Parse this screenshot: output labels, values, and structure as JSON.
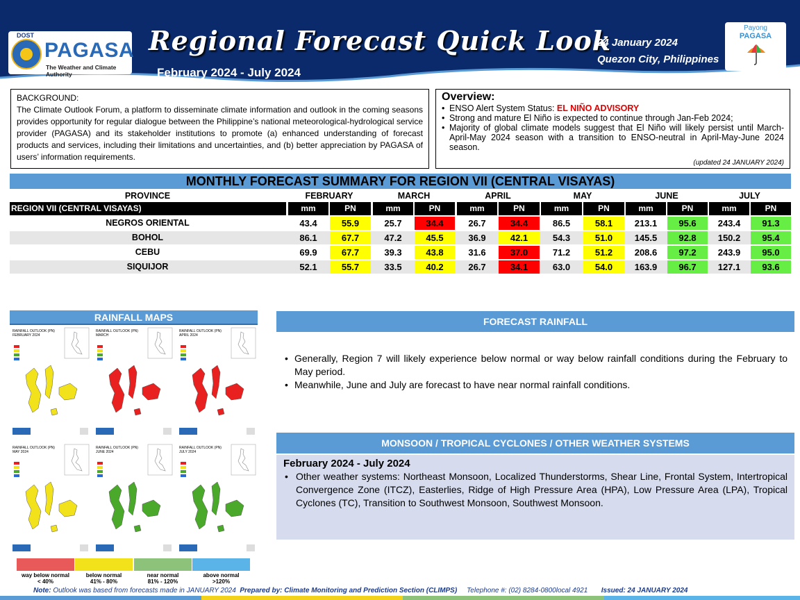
{
  "header": {
    "title": "Regional Forecast Quick Look",
    "period": "February 2024 - July 2024",
    "date": "24 January 2024",
    "place": "Quezon City, Philippines",
    "logo_dost": "DOST",
    "logo_name": "PAGASA",
    "logo_sub": "The Weather and Climate Authority",
    "payong_1": "Payong",
    "payong_2": "PAGASA",
    "colors": {
      "banner": "#0a2a6b",
      "accent": "#5b9bd5"
    }
  },
  "background": {
    "heading": "BACKGROUND:",
    "text": "The Climate Outlook Forum, a platform to disseminate climate information and outlook in the coming seasons provides opportunity for regular dialogue between the Philippine’s national meteorological-hydrological service provider (PAGASA) and its stakeholder institutions to promote (a) enhanced understanding of forecast products and services, including their limitations and uncertainties, and (b) better appreciation by PAGASA of users’ information requirements."
  },
  "overview": {
    "heading": "Overview:",
    "enso_prefix": "ENSO Alert System Status: ",
    "enso_status": "EL NIÑO ADVISORY",
    "item_2": "Strong and mature El Niño is expected to continue through Jan-Feb 2024;",
    "item_3": "Majority of global climate models suggest that El Niño will likely persist until March-April-May 2024 season with a transition to ENSO-neutral in April-May-June 2024 season.",
    "updated": "(updated 24 JANUARY 2024)"
  },
  "table": {
    "title": "MONTHLY FORECAST SUMMARY FOR REGION VII (CENTRAL VISAYAS)",
    "province_header": "PROVINCE",
    "region_label": "REGION VII (CENTRAL VISAYAS)",
    "months": [
      "FEBRUARY",
      "MARCH",
      "APRIL",
      "MAY",
      "JUNE",
      "JULY"
    ],
    "unit_mm": "mm",
    "unit_pn": "PN",
    "rows": [
      {
        "province": "NEGROS ORIENTAL",
        "mm": [
          "43.4",
          "25.7",
          "26.7",
          "86.5",
          "213.1",
          "243.4"
        ],
        "pn": [
          "55.9",
          "34.4",
          "34.4",
          "58.1",
          "95.6",
          "91.3"
        ],
        "cat": [
          "y",
          "r",
          "r",
          "y",
          "g",
          "g"
        ]
      },
      {
        "province": "BOHOL",
        "mm": [
          "86.1",
          "47.2",
          "36.9",
          "54.3",
          "145.5",
          "150.2"
        ],
        "pn": [
          "67.7",
          "45.5",
          "42.1",
          "51.0",
          "92.8",
          "95.4"
        ],
        "cat": [
          "y",
          "y",
          "y",
          "y",
          "g",
          "g"
        ]
      },
      {
        "province": "CEBU",
        "mm": [
          "69.9",
          "39.3",
          "31.6",
          "71.2",
          "208.6",
          "243.9"
        ],
        "pn": [
          "67.7",
          "43.8",
          "37.0",
          "51.2",
          "97.2",
          "95.0"
        ],
        "cat": [
          "y",
          "y",
          "r",
          "y",
          "g",
          "g"
        ]
      },
      {
        "province": "SIQUIJOR",
        "mm": [
          "52.1",
          "33.5",
          "26.7",
          "63.0",
          "163.9",
          "127.1"
        ],
        "pn": [
          "55.7",
          "40.2",
          "34.1",
          "54.0",
          "96.7",
          "93.6"
        ],
        "cat": [
          "y",
          "y",
          "r",
          "y",
          "g",
          "g"
        ]
      }
    ],
    "category_colors": {
      "y": "#ffff00",
      "r": "#ff0000",
      "g": "#66ee44"
    }
  },
  "rainfall_maps": {
    "title": "RAINFALL MAPS",
    "tiles": [
      {
        "outlook": "RAINFALL OUTLOOK (PN)",
        "month": "FEBRUARY 2024",
        "fill": "#f2e21b"
      },
      {
        "outlook": "RAINFALL OUTLOOK (PN)",
        "month": "MARCH",
        "fill": "#e82020"
      },
      {
        "outlook": "RAINFALL OUTLOOK (PN)",
        "month": "APRIL 2024",
        "fill": "#e82020"
      },
      {
        "outlook": "RAINFALL OUTLOOK (PN)",
        "month": "MAY 2024",
        "fill": "#f2e21b"
      },
      {
        "outlook": "RAINFALL OUTLOOK (PN)",
        "month": "JUNE 2024",
        "fill": "#4aa82a"
      },
      {
        "outlook": "RAINFALL OUTLOOK (PN)",
        "month": "JULY 2024",
        "fill": "#4aa82a"
      }
    ],
    "legend": [
      {
        "label": "way below normal",
        "range": "< 40%",
        "color": "#e85a5a"
      },
      {
        "label": "below normal",
        "range": "41% - 80%",
        "color": "#f2e21b"
      },
      {
        "label": "near normal",
        "range": "81% - 120%",
        "color": "#8cc27a"
      },
      {
        "label": "above normal",
        "range": ">120%",
        "color": "#5ab4e8"
      }
    ]
  },
  "forecast_rainfall": {
    "title": "FORECAST RAINFALL",
    "items": [
      "Generally, Region 7 will likely experience below normal or way below rainfall conditions during the February to May period.",
      "Meanwhile, June and July are forecast to have near normal rainfall conditions."
    ]
  },
  "monsoon": {
    "title": "MONSOON  / TROPICAL CYCLONES / OTHER WEATHER SYSTEMS",
    "period": "February 2024 - July 2024",
    "item": "Other weather systems: Northeast Monsoon, Localized Thunderstorms, Shear Line, Frontal System, Intertropical Convergence Zone (ITCZ), Easterlies, Ridge of High Pressure Area (HPA), Low Pressure Area (LPA), Tropical Cyclones (TC), Transition to Southwest Monsoon, Southwest Monsoon."
  },
  "footer": {
    "note_label": "Note:",
    "note_text": " Outlook was based from forecasts made in JANUARY 2024",
    "prepared": "Prepared by: Climate Monitoring and Prediction Section (CLIMPS)",
    "telephone": "Telephone #: (02) 8284-0800local 4921",
    "issued": "Issued: 24 JANUARY 2024"
  }
}
